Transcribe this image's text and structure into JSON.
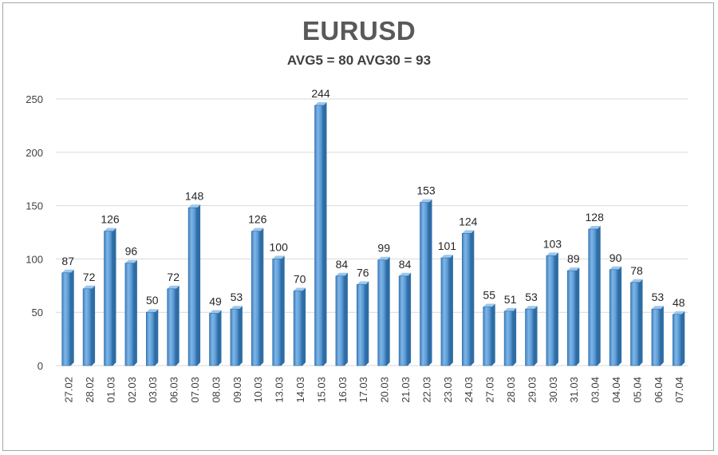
{
  "chart_data": {
    "type": "bar",
    "title": "EURUSD",
    "subtitle": "AVG5 = 80 AVG30 = 93",
    "categories": [
      "27.02",
      "28.02",
      "01.03",
      "02.03",
      "03.03",
      "06.03",
      "07.03",
      "08.03",
      "09.03",
      "10.03",
      "13.03",
      "14.03",
      "15.03",
      "16.03",
      "17.03",
      "20.03",
      "21.03",
      "22.03",
      "23.03",
      "24.03",
      "27.03",
      "28.03",
      "29.03",
      "30.03",
      "31.03",
      "03.04",
      "04.04",
      "05.04",
      "06.04",
      "07.04"
    ],
    "values": [
      87,
      72,
      126,
      96,
      50,
      72,
      148,
      49,
      53,
      126,
      100,
      70,
      244,
      84,
      76,
      99,
      84,
      153,
      101,
      124,
      55,
      51,
      53,
      103,
      89,
      128,
      90,
      78,
      53,
      48
    ],
    "yticks": [
      0,
      50,
      100,
      150,
      200,
      250
    ],
    "ylim": [
      0,
      250
    ],
    "grid": true,
    "legend": "none",
    "bar_color": "#5b9bd5",
    "bar_dark": "#2e6da4"
  }
}
